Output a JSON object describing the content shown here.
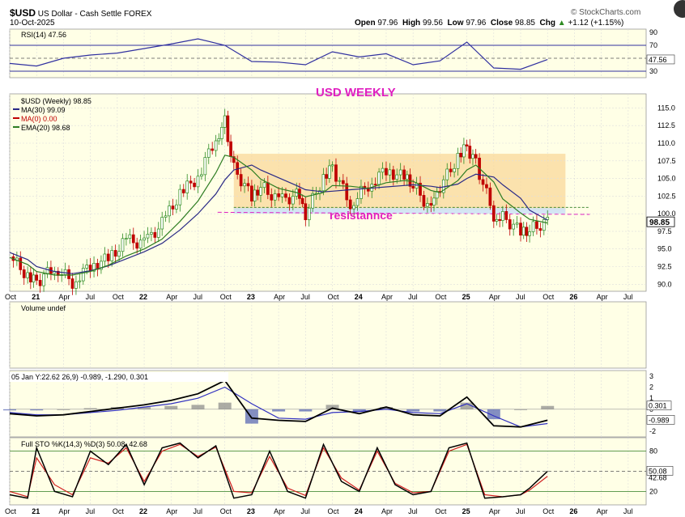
{
  "header": {
    "symbol": "$USD",
    "name": "US Dollar - Cash Settle FOREX",
    "date": "10-Oct-2025",
    "copyright": "© StockCharts.com",
    "ohlc": {
      "open_label": "Open",
      "open": "97.96",
      "high_label": "High",
      "high": "99.56",
      "low_label": "Low",
      "low": "97.96",
      "close_label": "Close",
      "close": "98.85",
      "chg_label": "Chg",
      "chg": "+1.12 (+1.15%)"
    },
    "chg_arrow_icon": "up-arrow-icon"
  },
  "colors": {
    "panel_bg": "#FFFFE6",
    "up": "#2E8B22",
    "down": "#C00000",
    "ma": "#2A2A86",
    "ema": "#2E7D22",
    "annotation_pink": "#E020C0",
    "box_fill": "#F9D89A",
    "resistance_band": "#CFE3F5"
  },
  "chart_data": [
    {
      "panel": "rsi",
      "type": "line",
      "legend": "RSI(14) 47.56",
      "ylim": [
        20,
        95
      ],
      "ticks": [
        30,
        50,
        70,
        90
      ],
      "levels": [
        30,
        70
      ],
      "last_value": "47.56",
      "x": [
        "2020-10",
        "2021-01",
        "2021-04",
        "2021-07",
        "2021-10",
        "2022-01",
        "2022-04",
        "2022-07",
        "2022-10",
        "2023-01",
        "2023-04",
        "2023-07",
        "2023-10",
        "2024-01",
        "2024-04",
        "2024-07",
        "2024-10",
        "2025-01",
        "2025-04",
        "2025-07",
        "2025-10"
      ],
      "values": [
        42,
        38,
        50,
        55,
        58,
        65,
        72,
        80,
        70,
        45,
        44,
        40,
        60,
        52,
        57,
        40,
        46,
        75,
        35,
        33,
        48
      ]
    },
    {
      "panel": "price",
      "type": "candlestick",
      "title": "USD WEEKLY",
      "legend": [
        "$USD (Weekly) 98.85",
        "MA(30) 99.09",
        "MA(0) 0.00",
        "EMA(20) 98.68"
      ],
      "ylim": [
        89,
        117
      ],
      "yticks": [
        90.0,
        92.5,
        95.0,
        97.5,
        100.0,
        102.5,
        105.0,
        107.5,
        110.0,
        112.5,
        115.0
      ],
      "last_price": "98.85",
      "annotation": "resistannce",
      "resistance_level": 100.2,
      "range_box": {
        "from": "2022-11",
        "to": "2025-12",
        "low": 100.5,
        "high": 108.5
      },
      "x": [
        "2020-10",
        "2020-12",
        "2021-01",
        "2021-03",
        "2021-05",
        "2021-07",
        "2021-09",
        "2021-11",
        "2022-01",
        "2022-03",
        "2022-05",
        "2022-07",
        "2022-09",
        "2022-10",
        "2022-11",
        "2023-01",
        "2023-02",
        "2023-04",
        "2023-06",
        "2023-07",
        "2023-09",
        "2023-10",
        "2023-12",
        "2024-02",
        "2024-04",
        "2024-06",
        "2024-07",
        "2024-09",
        "2024-10",
        "2024-12",
        "2025-01",
        "2025-02",
        "2025-04",
        "2025-05",
        "2025-07",
        "2025-08",
        "2025-10"
      ],
      "close": [
        93.9,
        91.2,
        90.2,
        92.5,
        90.3,
        92.6,
        93.6,
        96.2,
        95.8,
        98.6,
        102.8,
        105.2,
        110.8,
        113.0,
        106.5,
        102.3,
        104.0,
        101.8,
        102.6,
        99.8,
        105.2,
        106.5,
        101.4,
        104.1,
        106.2,
        105.1,
        104.2,
        100.4,
        103.8,
        108.0,
        109.4,
        107.2,
        99.8,
        99.6,
        97.4,
        97.8,
        98.85
      ],
      "ma30": [
        94.5,
        93.5,
        92.5,
        91.8,
        91.5,
        91.9,
        92.6,
        93.6,
        94.6,
        95.8,
        97.7,
        100.0,
        102.8,
        104.8,
        106.2,
        106.9,
        106.2,
        105.1,
        104.0,
        103.4,
        103.1,
        103.2,
        103.4,
        103.6,
        103.8,
        104.0,
        104.1,
        103.9,
        103.7,
        104.2,
        105.0,
        105.6,
        105.2,
        104.1,
        102.2,
        100.5,
        99.09
      ],
      "ema20": [
        93.8,
        92.8,
        91.8,
        91.3,
        91.3,
        91.8,
        92.7,
        94.0,
        95.0,
        96.4,
        98.9,
        101.8,
        105.8,
        108.3,
        108.0,
        106.2,
        104.9,
        103.6,
        103.0,
        102.4,
        103.0,
        104.0,
        103.9,
        103.6,
        104.4,
        104.7,
        104.6,
        103.3,
        103.0,
        104.7,
        106.2,
        106.9,
        104.5,
        102.1,
        100.1,
        99.2,
        98.68
      ]
    },
    {
      "panel": "volume",
      "type": "bar",
      "legend": "Volume undef",
      "values": []
    },
    {
      "panel": "macd",
      "type": "line",
      "legend": "05 Jan Y:22.62 26,9) -0.989, -1.290, 0.301",
      "ylim": [
        -2.5,
        3.5
      ],
      "ticks": [
        3,
        2,
        1,
        0,
        -1,
        -2
      ],
      "last_values": [
        "0.301",
        "-0.989"
      ],
      "x": [
        "2020-10",
        "2021-01",
        "2021-04",
        "2021-07",
        "2021-10",
        "2022-01",
        "2022-04",
        "2022-07",
        "2022-10",
        "2023-01",
        "2023-04",
        "2023-07",
        "2023-10",
        "2024-01",
        "2024-04",
        "2024-07",
        "2024-10",
        "2025-01",
        "2025-04",
        "2025-07",
        "2025-10"
      ],
      "macd": [
        -0.4,
        -0.6,
        -0.5,
        -0.2,
        0.1,
        0.4,
        0.8,
        1.4,
        2.6,
        -0.8,
        -1.0,
        -1.1,
        0.1,
        -0.4,
        0.2,
        -0.5,
        -0.6,
        1.1,
        -1.5,
        -1.6,
        -0.99
      ],
      "signal": [
        -0.3,
        -0.5,
        -0.5,
        -0.3,
        -0.1,
        0.2,
        0.5,
        1.0,
        2.0,
        0.5,
        -0.8,
        -0.9,
        -0.3,
        -0.2,
        0.0,
        -0.3,
        -0.4,
        0.5,
        -0.6,
        -1.6,
        -1.29
      ],
      "histogram": [
        -0.1,
        -0.1,
        0.0,
        0.1,
        0.2,
        0.2,
        0.3,
        0.4,
        0.6,
        -1.3,
        -0.2,
        -0.2,
        0.4,
        -0.2,
        0.2,
        -0.2,
        -0.2,
        0.6,
        -0.9,
        0.0,
        0.3
      ]
    },
    {
      "panel": "stochastic",
      "type": "line",
      "legend": "Full STO %K(14,3) %D(3) 50.08, 42.68",
      "ylim": [
        0,
        100
      ],
      "ticks": [
        20,
        50,
        80
      ],
      "levels": [
        20,
        50,
        80
      ],
      "last_values": [
        "50.08",
        "42.68"
      ],
      "x_ticks": [
        "Oct",
        "21",
        "Apr",
        "Jul",
        "Oct",
        "22",
        "Apr",
        "Jul",
        "Oct",
        "23",
        "Apr",
        "Jul",
        "Oct",
        "24",
        "Apr",
        "Jul",
        "Oct",
        "25",
        "Apr",
        "Jul",
        "Oct",
        "26",
        "Apr",
        "Jul"
      ],
      "x": [
        "2020-10",
        "2020-12",
        "2021-01",
        "2021-03",
        "2021-05",
        "2021-07",
        "2021-09",
        "2021-11",
        "2022-01",
        "2022-03",
        "2022-05",
        "2022-07",
        "2022-09",
        "2022-11",
        "2023-01",
        "2023-03",
        "2023-05",
        "2023-07",
        "2023-09",
        "2023-11",
        "2024-01",
        "2024-03",
        "2024-05",
        "2024-07",
        "2024-09",
        "2024-11",
        "2025-01",
        "2025-03",
        "2025-05",
        "2025-07",
        "2025-08",
        "2025-10"
      ],
      "k": [
        15,
        10,
        85,
        20,
        12,
        80,
        60,
        90,
        30,
        85,
        92,
        70,
        88,
        10,
        15,
        80,
        20,
        10,
        90,
        35,
        20,
        85,
        30,
        15,
        20,
        85,
        92,
        10,
        12,
        15,
        25,
        50.08
      ],
      "d": [
        20,
        12,
        70,
        30,
        15,
        70,
        62,
        85,
        35,
        80,
        90,
        72,
        86,
        20,
        18,
        72,
        25,
        14,
        85,
        40,
        22,
        80,
        32,
        18,
        20,
        80,
        90,
        15,
        12,
        15,
        22,
        42.68
      ]
    }
  ]
}
